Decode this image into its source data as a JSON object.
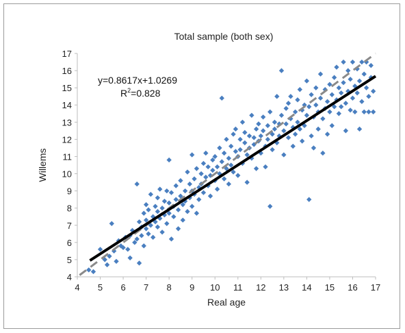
{
  "chart_data": {
    "type": "scatter",
    "title": "Total sample (both sex)",
    "xlabel": "Real age",
    "ylabel": "Willems",
    "xlim": [
      4,
      17
    ],
    "ylim": [
      4,
      17
    ],
    "xticks": [
      4,
      5,
      6,
      7,
      8,
      9,
      10,
      11,
      12,
      13,
      14,
      15,
      16,
      17
    ],
    "yticks": [
      4,
      5,
      6,
      7,
      8,
      9,
      10,
      11,
      12,
      13,
      14,
      15,
      16,
      17
    ],
    "grid": false,
    "equation": "y=0.8617x+1.0269",
    "r2_label": "R",
    "r2_sup": "2",
    "r2_value": "=0.828",
    "regression": {
      "slope": 0.8617,
      "intercept": 1.0269,
      "x_range": [
        4.55,
        17
      ]
    },
    "identity_line": {
      "x_range": [
        4.1,
        17
      ],
      "style": "dashed"
    },
    "point_color": "#4a7fc0",
    "series": [
      {
        "points": [
          [
            4.5,
            4.4
          ],
          [
            4.7,
            4.3
          ],
          [
            5.0,
            5.6
          ],
          [
            5.2,
            5.0
          ],
          [
            5.3,
            4.7
          ],
          [
            5.4,
            5.2
          ],
          [
            5.5,
            7.1
          ],
          [
            5.6,
            5.5
          ],
          [
            5.7,
            4.9
          ],
          [
            5.8,
            6.1
          ],
          [
            5.9,
            5.8
          ],
          [
            6.0,
            5.7
          ],
          [
            6.1,
            6.3
          ],
          [
            6.2,
            5.6
          ],
          [
            6.3,
            6.4
          ],
          [
            6.3,
            5.1
          ],
          [
            6.4,
            6.7
          ],
          [
            6.5,
            6.0
          ],
          [
            6.6,
            9.4
          ],
          [
            6.6,
            6.2
          ],
          [
            6.7,
            7.2
          ],
          [
            6.7,
            4.8
          ],
          [
            6.8,
            6.9
          ],
          [
            6.8,
            6.4
          ],
          [
            6.9,
            7.7
          ],
          [
            6.9,
            5.8
          ],
          [
            7.0,
            7.3
          ],
          [
            7.0,
            6.8
          ],
          [
            7.0,
            8.2
          ],
          [
            7.1,
            6.5
          ],
          [
            7.1,
            7.9
          ],
          [
            7.2,
            7.0
          ],
          [
            7.2,
            8.8
          ],
          [
            7.3,
            7.5
          ],
          [
            7.3,
            6.3
          ],
          [
            7.4,
            8.1
          ],
          [
            7.4,
            7.2
          ],
          [
            7.5,
            8.6
          ],
          [
            7.5,
            6.9
          ],
          [
            7.5,
            7.8
          ],
          [
            7.6,
            7.4
          ],
          [
            7.6,
            9.1
          ],
          [
            7.7,
            8.0
          ],
          [
            7.7,
            6.6
          ],
          [
            7.8,
            8.4
          ],
          [
            7.8,
            7.6
          ],
          [
            7.9,
            9.0
          ],
          [
            7.9,
            7.1
          ],
          [
            8.0,
            8.3
          ],
          [
            8.0,
            7.7
          ],
          [
            8.0,
            10.8
          ],
          [
            8.1,
            8.9
          ],
          [
            8.1,
            6.2
          ],
          [
            8.2,
            8.1
          ],
          [
            8.2,
            7.5
          ],
          [
            8.3,
            9.3
          ],
          [
            8.3,
            8.5
          ],
          [
            8.4,
            7.9
          ],
          [
            8.4,
            6.8
          ],
          [
            8.5,
            8.7
          ],
          [
            8.5,
            9.6
          ],
          [
            8.6,
            8.2
          ],
          [
            8.6,
            7.3
          ],
          [
            8.7,
            9.0
          ],
          [
            8.7,
            8.4
          ],
          [
            8.8,
            10.1
          ],
          [
            8.8,
            7.8
          ],
          [
            8.9,
            9.4
          ],
          [
            8.9,
            8.6
          ],
          [
            9.0,
            9.0
          ],
          [
            9.0,
            8.1
          ],
          [
            9.0,
            11.1
          ],
          [
            9.1,
            9.7
          ],
          [
            9.1,
            8.8
          ],
          [
            9.2,
            10.3
          ],
          [
            9.2,
            7.7
          ],
          [
            9.3,
            9.2
          ],
          [
            9.3,
            8.5
          ],
          [
            9.4,
            10.0
          ],
          [
            9.4,
            9.4
          ],
          [
            9.5,
            10.6
          ],
          [
            9.5,
            8.9
          ],
          [
            9.6,
            9.8
          ],
          [
            9.6,
            11.2
          ],
          [
            9.7,
            9.3
          ],
          [
            9.7,
            10.4
          ],
          [
            9.8,
            9.9
          ],
          [
            9.8,
            8.7
          ],
          [
            9.9,
            10.8
          ],
          [
            9.9,
            10.2
          ],
          [
            10.0,
            9.6
          ],
          [
            10.0,
            11.0
          ],
          [
            10.1,
            10.4
          ],
          [
            10.1,
            9.1
          ],
          [
            10.2,
            11.5
          ],
          [
            10.2,
            10.0
          ],
          [
            10.3,
            14.4
          ],
          [
            10.3,
            10.7
          ],
          [
            10.4,
            9.7
          ],
          [
            10.4,
            11.2
          ],
          [
            10.5,
            10.3
          ],
          [
            10.5,
            12.0
          ],
          [
            10.6,
            10.9
          ],
          [
            10.6,
            9.4
          ],
          [
            10.7,
            11.6
          ],
          [
            10.7,
            10.5
          ],
          [
            10.8,
            12.3
          ],
          [
            10.8,
            10.1
          ],
          [
            10.9,
            11.3
          ],
          [
            10.9,
            12.6
          ],
          [
            11.0,
            11.0
          ],
          [
            11.0,
            9.9
          ],
          [
            11.1,
            12.0
          ],
          [
            11.1,
            11.4
          ],
          [
            11.2,
            13.0
          ],
          [
            11.2,
            10.6
          ],
          [
            11.3,
            11.8
          ],
          [
            11.3,
            12.4
          ],
          [
            11.4,
            11.1
          ],
          [
            11.4,
            9.5
          ],
          [
            11.5,
            12.2
          ],
          [
            11.5,
            11.5
          ],
          [
            11.6,
            13.4
          ],
          [
            11.6,
            10.9
          ],
          [
            11.7,
            12.1
          ],
          [
            11.7,
            11.7
          ],
          [
            11.8,
            12.6
          ],
          [
            11.8,
            10.3
          ],
          [
            11.9,
            11.9
          ],
          [
            11.9,
            12.9
          ],
          [
            12.0,
            12.2
          ],
          [
            12.0,
            11.2
          ],
          [
            12.1,
            13.3
          ],
          [
            12.1,
            12.5
          ],
          [
            12.2,
            11.6
          ],
          [
            12.2,
            10.4
          ],
          [
            12.3,
            12.8
          ],
          [
            12.3,
            12.0
          ],
          [
            12.4,
            13.6
          ],
          [
            12.4,
            8.1
          ],
          [
            12.5,
            12.3
          ],
          [
            12.5,
            11.4
          ],
          [
            12.6,
            13.0
          ],
          [
            12.6,
            12.6
          ],
          [
            12.7,
            14.5
          ],
          [
            12.7,
            11.8
          ],
          [
            12.8,
            12.9
          ],
          [
            12.8,
            12.2
          ],
          [
            12.9,
            16.0
          ],
          [
            12.9,
            13.4
          ],
          [
            13.0,
            12.5
          ],
          [
            13.0,
            11.1
          ],
          [
            13.1,
            13.8
          ],
          [
            13.1,
            12.9
          ],
          [
            13.2,
            14.1
          ],
          [
            13.2,
            12.1
          ],
          [
            13.3,
            13.2
          ],
          [
            13.3,
            14.5
          ],
          [
            13.4,
            12.7
          ],
          [
            13.4,
            11.6
          ],
          [
            13.5,
            13.6
          ],
          [
            13.5,
            12.3
          ],
          [
            13.6,
            14.3
          ],
          [
            13.6,
            13.0
          ],
          [
            13.7,
            12.6
          ],
          [
            13.7,
            14.9
          ],
          [
            13.8,
            13.7
          ],
          [
            13.8,
            11.9
          ],
          [
            13.9,
            14.0
          ],
          [
            13.9,
            12.8
          ],
          [
            14.0,
            13.4
          ],
          [
            14.0,
            15.4
          ],
          [
            14.1,
            8.5
          ],
          [
            14.1,
            13.9
          ],
          [
            14.2,
            12.2
          ],
          [
            14.2,
            14.6
          ],
          [
            14.3,
            13.3
          ],
          [
            14.3,
            11.5
          ],
          [
            14.4,
            14.0
          ],
          [
            14.4,
            15.0
          ],
          [
            14.5,
            13.6
          ],
          [
            14.5,
            12.6
          ],
          [
            14.6,
            14.4
          ],
          [
            14.6,
            15.8
          ],
          [
            14.7,
            13.2
          ],
          [
            14.7,
            11.2
          ],
          [
            14.8,
            14.9
          ],
          [
            14.8,
            13.8
          ],
          [
            14.9,
            12.3
          ],
          [
            14.9,
            14.2
          ],
          [
            15.0,
            15.2
          ],
          [
            15.0,
            13.6
          ],
          [
            15.1,
            14.6
          ],
          [
            15.1,
            12.8
          ],
          [
            15.2,
            15.6
          ],
          [
            15.2,
            13.9
          ],
          [
            15.3,
            14.3
          ],
          [
            15.3,
            16.2
          ],
          [
            15.4,
            13.5
          ],
          [
            15.4,
            15.0
          ],
          [
            15.5,
            14.7
          ],
          [
            15.5,
            13.9
          ],
          [
            15.6,
            16.5
          ],
          [
            15.6,
            15.3
          ],
          [
            15.7,
            14.1
          ],
          [
            15.7,
            12.5
          ],
          [
            15.8,
            14.8
          ],
          [
            15.8,
            16.0
          ],
          [
            15.9,
            15.5
          ],
          [
            15.9,
            13.7
          ],
          [
            16.0,
            16.5
          ],
          [
            16.0,
            14.4
          ],
          [
            16.1,
            15.1
          ],
          [
            16.1,
            13.6
          ],
          [
            16.2,
            16.1
          ],
          [
            16.2,
            14.7
          ],
          [
            16.3,
            15.4
          ],
          [
            16.3,
            12.6
          ],
          [
            16.4,
            16.5
          ],
          [
            16.4,
            14.2
          ],
          [
            16.5,
            15.8
          ],
          [
            16.5,
            13.6
          ],
          [
            16.6,
            16.5
          ],
          [
            16.6,
            15.0
          ],
          [
            16.7,
            14.5
          ],
          [
            16.7,
            13.6
          ],
          [
            16.8,
            16.3
          ],
          [
            16.8,
            15.6
          ],
          [
            16.9,
            14.8
          ],
          [
            16.9,
            13.6
          ]
        ]
      }
    ]
  }
}
